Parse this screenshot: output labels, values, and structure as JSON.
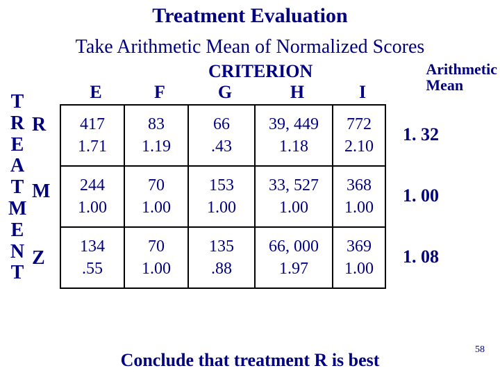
{
  "title": "Treatment Evaluation",
  "subtitle": "Take Arithmetic Mean of Normalized Scores",
  "criterion_heading": "CRITERION",
  "arithmetic_mean_label_line1": "Arithmetic",
  "arithmetic_mean_label_line2": "Mean",
  "side_label_chars": [
    "T",
    "R",
    "E",
    "A",
    "T",
    "M",
    "E",
    "N",
    "T"
  ],
  "columns": [
    "E",
    "F",
    "G",
    "H",
    "I"
  ],
  "row_labels": [
    "R",
    "M",
    "Z"
  ],
  "table": {
    "type": "table",
    "background_color": "#ffffff",
    "border_color": "#000000",
    "text_color": "#000080",
    "cell_fontsize": 24,
    "header_fontsize": 26,
    "rows": [
      {
        "raw": [
          "417",
          "83",
          "66",
          "39, 449",
          "772"
        ],
        "norm": [
          "1.71",
          "1.19",
          ".43",
          "1.18",
          "2.10"
        ],
        "mean": "1. 32"
      },
      {
        "raw": [
          "244",
          "70",
          "153",
          "33, 527",
          "368"
        ],
        "norm": [
          "1.00",
          "1.00",
          "1.00",
          "1.00",
          "1.00"
        ],
        "mean": "1. 00"
      },
      {
        "raw": [
          "134",
          "70",
          "135",
          "66, 000",
          "369"
        ],
        "norm": [
          ".55",
          "1.00",
          ".88",
          "1.97",
          "1.00"
        ],
        "mean": "1. 08"
      }
    ]
  },
  "conclusion": "Conclude that treatment R is best",
  "slide_number": "58",
  "colors": {
    "background": "#ffffff",
    "text": "#000080",
    "border": "#000000"
  }
}
